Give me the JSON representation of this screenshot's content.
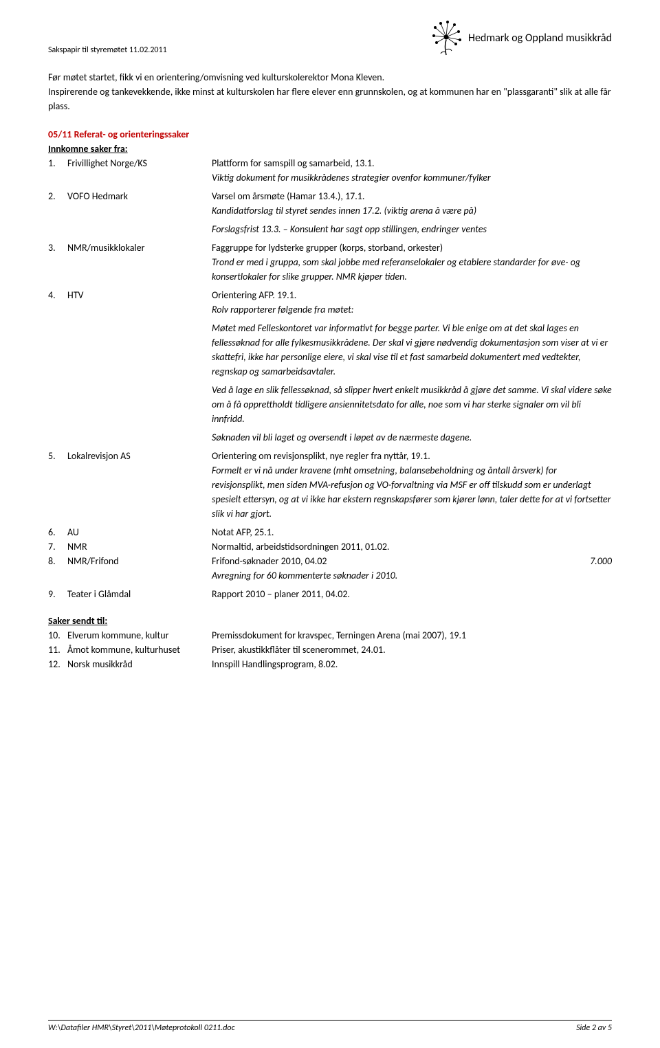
{
  "header": {
    "top_label": "Sakspapir til styremøtet 11.02.2011",
    "logo_text": "Hedmark og Oppland musikkråd"
  },
  "intro": {
    "p1": "Før møtet startet, fikk vi en orientering/omvisning ved kulturskolerektor Mona Kleven.",
    "p2": "Inspirerende og tankevekkende, ikke minst at kulturskolen har flere elever enn grunnskolen, og at kommunen har en \"plassgaranti\" slik at alle får plass."
  },
  "section1": {
    "title": "05/11  Referat- og orienteringssaker",
    "heading_incoming": "Innkomne saker fra:",
    "heading_sent": "Saker sendt til:"
  },
  "items_in": [
    {
      "num": "1.",
      "sender": "Frivillighet Norge/KS",
      "line1": "Plattform for samspill og samarbeid, 13.1.",
      "italic_lines": [
        "Viktig dokument for musikkrådenes strategier ovenfor kommuner/fylker"
      ]
    },
    {
      "num": "2.",
      "sender": "VOFO Hedmark",
      "line1": "Varsel om årsmøte (Hamar 13.4.), 17.1.",
      "italic_lines": [
        "Kandidatforslag til styret sendes innen 17.2. (viktig arena å være på)",
        "Forslagsfrist 13.3. – Konsulent har sagt opp stillingen, endringer ventes"
      ]
    },
    {
      "num": "3.",
      "sender": "NMR/musikklokaler",
      "line1": "Faggruppe for lydsterke grupper (korps, storband, orkester)",
      "italic_lines": [
        "Trond er med i gruppa, som skal jobbe med referanselokaler og etablere standarder for øve- og konsertlokaler for slike grupper. NMR kjøper tiden."
      ]
    },
    {
      "num": "4.",
      "sender": "HTV",
      "line1": "Orientering AFP. 19.1.",
      "italic_lines": [
        "Rolv rapporterer følgende fra møtet:",
        "Møtet med Felleskontoret var informativt for begge parter. Vi ble enige om at det skal lages en fellessøknad for alle fylkesmusikkrådene. Der skal vi gjøre nødvendig dokumentasjon som viser at vi er skattefri, ikke har personlige eiere, vi skal vise til et fast samarbeid dokumentert med vedtekter, regnskap og samarbeidsavtaler.",
        "Ved å lage en slik fellessøknad, så slipper hvert enkelt musikkråd å gjøre det samme. Vi skal videre søke om å få opprettholdt tidligere ansiennitetsdato for alle, noe som vi har sterke signaler om vil bli innfridd.",
        "Søknaden vil bli laget og oversendt i løpet av de nærmeste dagene."
      ]
    },
    {
      "num": "5.",
      "sender": "Lokalrevisjon AS",
      "line1": "Orientering om revisjonsplikt, nye regler fra nyttår, 19.1.",
      "italic_lines": [
        "Formelt er vi nå under kravene (mht omsetning, balansebeholdning og åntall årsverk) for revisjonsplikt, men siden MVA-refusjon og VO-forvaltning via MSF er off tilskudd som er underlagt spesielt ettersyn, og at vi ikke har ekstern regnskapsfører som kjører lønn, taler dette for at vi fortsetter slik vi har gjort."
      ]
    },
    {
      "num": "6.",
      "sender": "AU",
      "line1": "Notat AFP, 25.1."
    },
    {
      "num": "7.",
      "sender": "NMR",
      "line1": "Normaltid, arbeidstidsordningen 2011, 01.02."
    },
    {
      "num": "8.",
      "sender": "NMR/Frifond",
      "line1": "Frifond-søknader 2010, 04.02",
      "amount": "7.000",
      "italic_lines": [
        "Avregning for 60 kommenterte søknader i 2010."
      ]
    },
    {
      "num": "9.",
      "sender": "Teater i Glåmdal",
      "line1": "Rapport 2010 – planer 2011, 04.02."
    }
  ],
  "items_out": [
    {
      "num": "10.",
      "sender": "Elverum kommune, kultur",
      "line1": "Premissdokument for kravspec, Terningen Arena (mai 2007), 19.1"
    },
    {
      "num": "11.",
      "sender": "Åmot kommune, kulturhuset",
      "line1": "Priser, akustikkflåter til scenerommet, 24.01."
    },
    {
      "num": "12.",
      "sender": "Norsk musikkråd",
      "line1": "Innspill Handlingsprogram, 8.02."
    }
  ],
  "footer": {
    "path": "W:\\Datafiler HMR\\Styret\\2011\\Møteprotokoll 0211.doc",
    "page": "Side 2 av 5"
  },
  "colors": {
    "accent": "#c00000",
    "text": "#000000",
    "bg": "#ffffff"
  }
}
